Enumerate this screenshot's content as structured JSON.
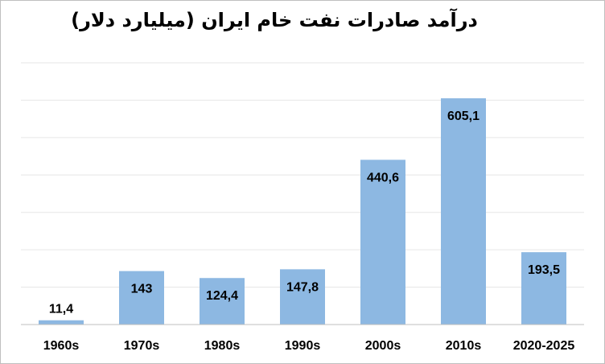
{
  "chart_data": {
    "type": "bar",
    "title": "درآمد صادرات نفت خام ایران (میلیارد دلار)",
    "categories": [
      "1960s",
      "1970s",
      "1980s",
      "1990s",
      "2000s",
      "2010s",
      "2020-2025"
    ],
    "values": [
      11.4,
      143,
      124.4,
      147.8,
      440.6,
      605.1,
      193.5
    ],
    "value_labels": [
      "11,4",
      "143",
      "124,4",
      "147,8",
      "440,6",
      "605,1",
      "193,5"
    ],
    "ylim": [
      0,
      700
    ],
    "grid": true,
    "legend": "none",
    "bar_color": "#8db8e2",
    "grid_color": "#e6e6e6",
    "axis_color": "#bfbfbf"
  }
}
